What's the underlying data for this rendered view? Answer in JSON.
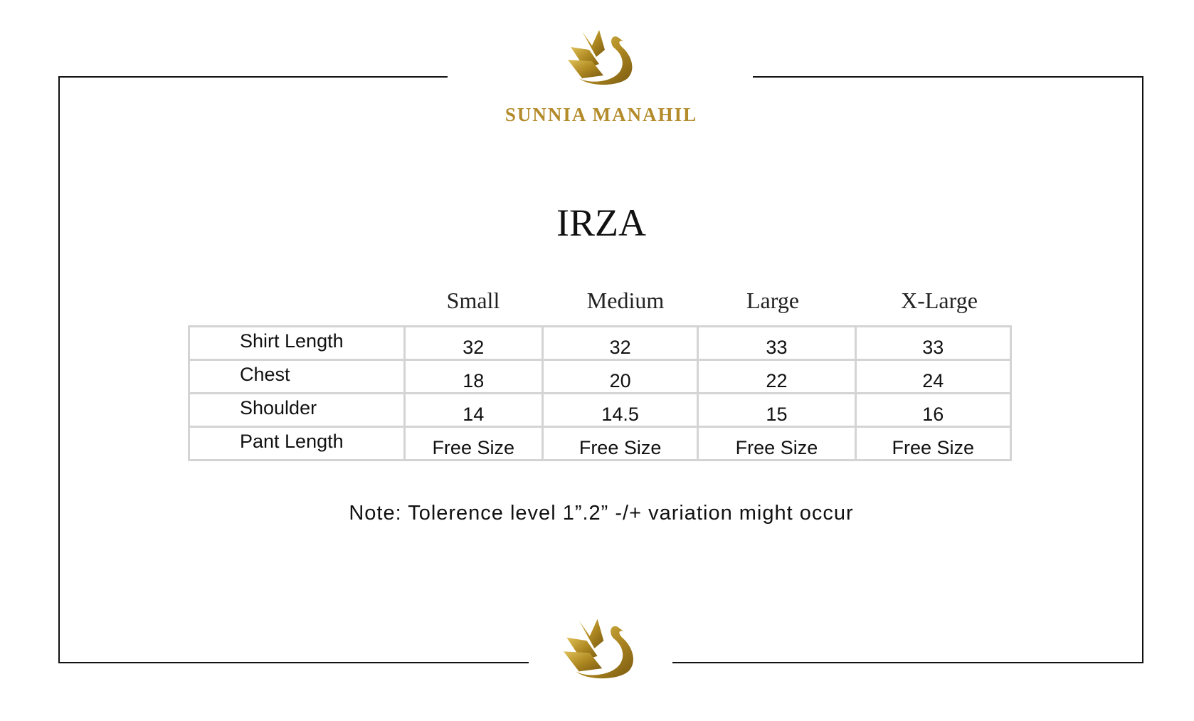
{
  "brand": {
    "name": "SUNNIA MANAHIL",
    "logo_icon": "golden-swan-icon",
    "color": "#b38b2a"
  },
  "title": "IRZA",
  "size_chart": {
    "columns": [
      "Small",
      "Medium",
      "Large",
      "X-Large"
    ],
    "rows": [
      {
        "label": "Shirt Length",
        "values": [
          "32",
          "32",
          "33",
          "33"
        ]
      },
      {
        "label": "Chest",
        "values": [
          "18",
          "20",
          "22",
          "24"
        ]
      },
      {
        "label": "Shoulder",
        "values": [
          "14",
          "14.5",
          "15",
          "16"
        ]
      },
      {
        "label": "Pant Length",
        "values": [
          "Free Size",
          "Free Size",
          "Free Size",
          "Free Size"
        ]
      }
    ]
  },
  "note": "Note: Tolerence level 1”.2” -/+ variation might occur"
}
